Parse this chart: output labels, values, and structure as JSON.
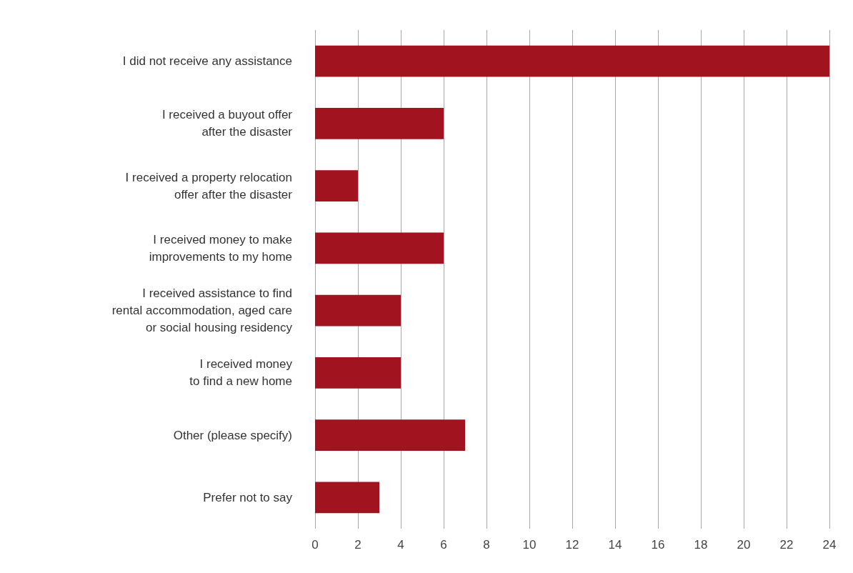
{
  "chart_data": {
    "type": "bar",
    "orientation": "horizontal",
    "categories": [
      "I did not receive any assistance",
      "I received a buyout offer\nafter the disaster",
      "I received a property relocation\noffer after the disaster",
      "I received money to make\nimprovements to my home",
      "I received assistance to find\nrental accommodation, aged care\nor social housing residency",
      "I received money\nto find a new home",
      "Other (please specify)",
      "Prefer not to say"
    ],
    "values": [
      24,
      6,
      2,
      6,
      4,
      4,
      7,
      3
    ],
    "color": "#a0131f",
    "xlim": [
      0,
      24
    ],
    "xticks": [
      0,
      2,
      4,
      6,
      8,
      10,
      12,
      14,
      16,
      18,
      20,
      22,
      24
    ],
    "grid": "x"
  }
}
